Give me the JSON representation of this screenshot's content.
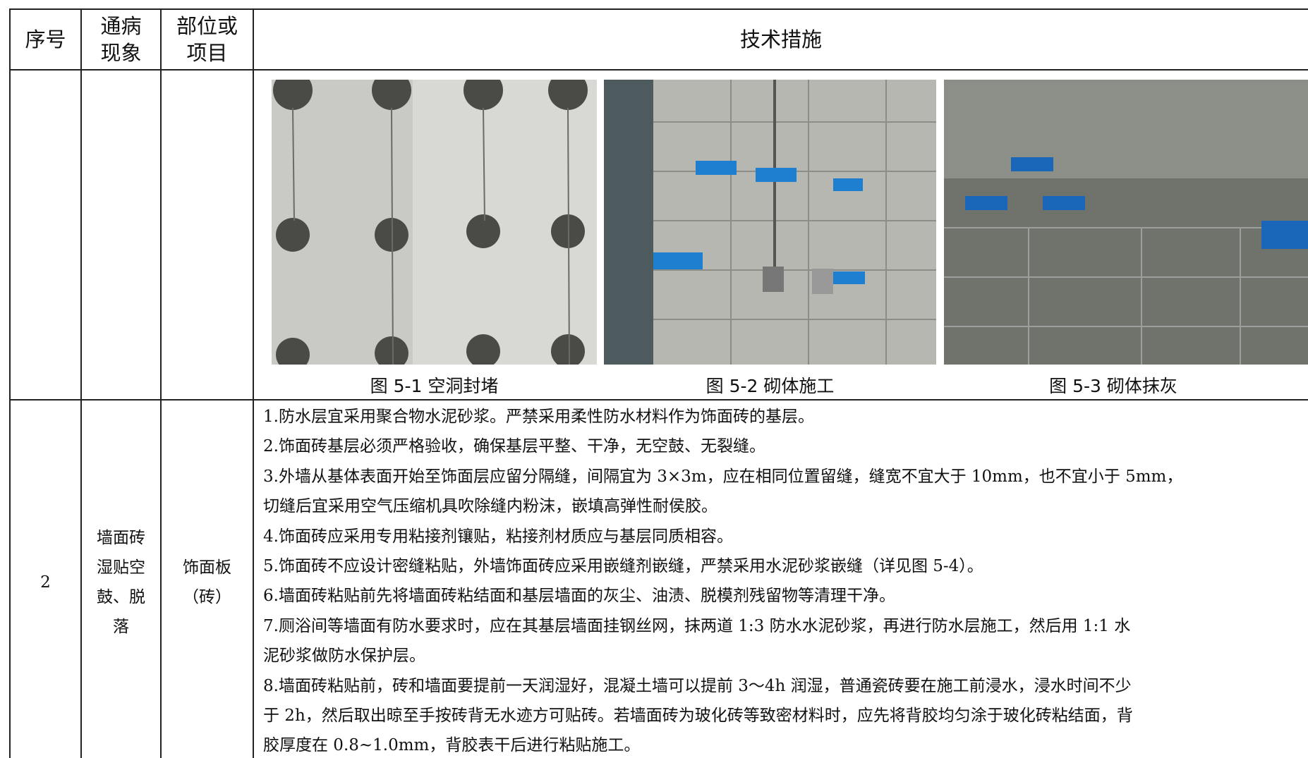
{
  "header": {
    "cells": [
      [
        "序号"
      ],
      [
        "通病",
        "现象"
      ],
      [
        "部位或",
        "项目"
      ],
      [
        "技术措施"
      ]
    ]
  },
  "figures": {
    "captions": [
      "图 5-1 空洞封堵",
      "图 5-2 砌体施工",
      "图 5-3 砌体抹灰"
    ]
  },
  "rows": [
    {
      "number": "2",
      "defect": [
        "墙面砖",
        "湿贴空",
        "鼓、脱",
        "落"
      ],
      "location": [
        "饰面板",
        "（砖）"
      ],
      "measures": [
        [
          "1.防水层宜采用聚合物水泥砂浆。严禁采用柔性防水材料作为饰面砖的基层。"
        ],
        [
          "2.饰面砖基层必须严格验收，确保基层平整、干净，无空鼓、无裂缝。"
        ],
        [
          "3.外墙从基体表面开始至饰面层应留分隔缝，间隔宜为 3×3m，应在相同位置留缝，缝宽不宜大于 10mm，也不宜小于 5mm，",
          "切缝后宜采用空气压缩机具吹除缝内粉沫，嵌填高弹性耐侯胶。"
        ],
        [
          "4.饰面砖应采用专用粘接剂镶贴，粘接剂材质应与基层同质相容。"
        ],
        [
          "5.饰面砖不应设计密缝粘贴，外墙饰面砖应采用嵌缝剂嵌缝，严禁采用水泥砂浆嵌缝（详见图 5-4）。"
        ],
        [
          "6.墙面砖粘贴前先将墙面砖粘结面和基层墙面的灰尘、油渍、脱模剂残留物等清理干净。"
        ],
        [
          "7.厕浴间等墙面有防水要求时，应在其基层墙面挂钢丝网，抹两道 1:3 防水水泥砂浆，再进行防水层施工，然后用 1:1 水",
          "泥砂浆做防水保护层。"
        ],
        [
          "8.墙面砖粘贴前，砖和墙面要提前一天润湿好，混凝土墙可以提前 3～4h 润湿，普通瓷砖要在施工前浸水，浸水时间不少",
          "于 2h，然后取出晾至手按砖背无水迹方可贴砖。若墙面砖为玻化砖等致密材料时，应先将背胶均匀涂于玻化砖粘结面，背",
          "胶厚度在 0.8~1.0mm，背胶表干后进行粘贴施工。"
        ]
      ]
    }
  ]
}
